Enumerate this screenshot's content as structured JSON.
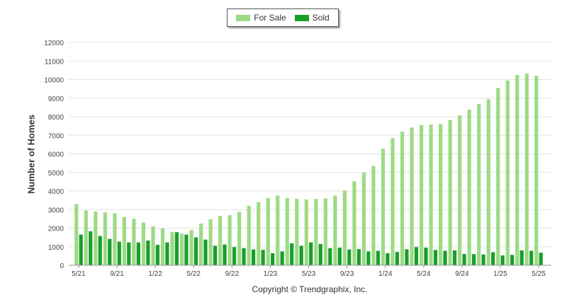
{
  "chart_data": {
    "type": "bar",
    "ylabel": "Number of Homes",
    "ylim": [
      0,
      12000
    ],
    "yticks": [
      0,
      1000,
      2000,
      3000,
      4000,
      5000,
      6000,
      7000,
      8000,
      9000,
      10000,
      11000,
      12000
    ],
    "x_tick_labels": [
      "5/21",
      "9/21",
      "1/22",
      "5/22",
      "9/22",
      "1/23",
      "5/23",
      "9/23",
      "1/24",
      "5/24",
      "9/24",
      "1/25",
      "5/25"
    ],
    "x_tick_indices": [
      0,
      4,
      8,
      12,
      16,
      20,
      24,
      28,
      32,
      36,
      40,
      44,
      48
    ],
    "grid": true,
    "legend_placement": "top-center",
    "series": [
      {
        "name": "For Sale",
        "color": "#9ddb85",
        "values": [
          3300,
          2950,
          2900,
          2850,
          2800,
          2600,
          2500,
          2300,
          2100,
          1980,
          1800,
          1700,
          1900,
          2250,
          2480,
          2650,
          2700,
          2880,
          3200,
          3400,
          3620,
          3750,
          3620,
          3580,
          3550,
          3570,
          3600,
          3750,
          4030,
          4520,
          4990,
          5350,
          6280,
          6850,
          7200,
          7420,
          7550,
          7580,
          7600,
          7820,
          8070,
          8380,
          8680,
          8930,
          9550,
          9950,
          10250,
          10320,
          10200
        ]
      },
      {
        "name": "Sold",
        "color": "#1a9e2a",
        "values": [
          1650,
          1830,
          1580,
          1420,
          1270,
          1230,
          1230,
          1330,
          1100,
          1230,
          1780,
          1650,
          1500,
          1380,
          1050,
          1120,
          980,
          920,
          850,
          830,
          650,
          750,
          1180,
          1050,
          1230,
          1150,
          920,
          950,
          850,
          870,
          750,
          780,
          650,
          720,
          860,
          980,
          950,
          820,
          780,
          800,
          610,
          600,
          580,
          700,
          530,
          560,
          800,
          780,
          680
        ]
      }
    ]
  },
  "footer": {
    "copyright": "Copyright © Trendgraphix, Inc."
  }
}
